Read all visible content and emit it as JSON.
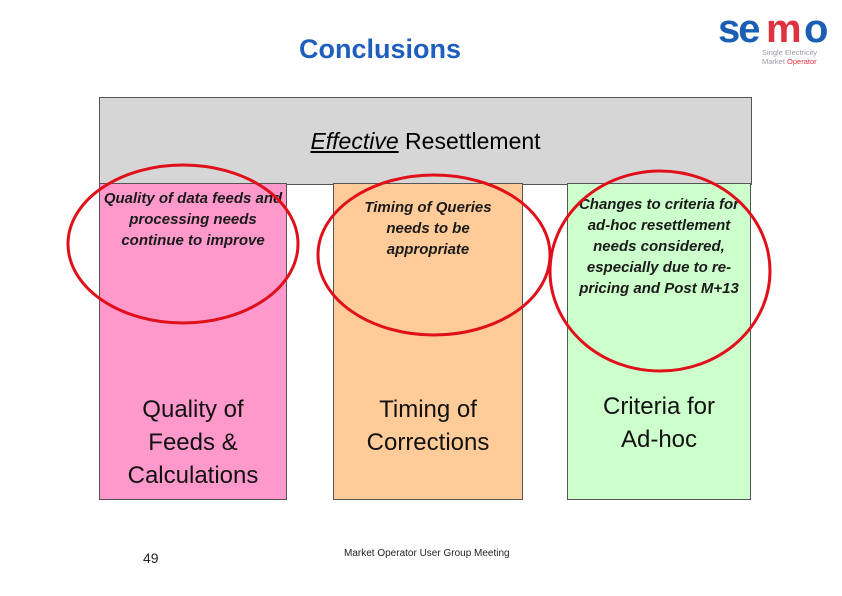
{
  "title": "Conclusions",
  "logo": {
    "wordmark": "semo",
    "tagline_line1": "Single Electricity",
    "tagline_line2_a": "Market",
    "tagline_line2_b": "Operator",
    "colors": {
      "blue": "#1a5fb4",
      "red": "#e0323e",
      "grey": "#9a9aa8"
    }
  },
  "header": {
    "emphasis": "Effective",
    "rest": " Resettlement"
  },
  "pillars": [
    {
      "note": "Quality of data feeds and processing needs continue to improve",
      "label_lines": [
        "Quality of",
        "Feeds &",
        "Calculations"
      ],
      "color": "#ff99cc"
    },
    {
      "note": "Timing of Queries needs to be appropriate",
      "label_lines": [
        "Timing of",
        "Corrections"
      ],
      "color": "#ffcc99"
    },
    {
      "note": "Changes to criteria for ad-hoc resettlement needs considered, especially due to re-pricing and Post M+13",
      "label_lines": [
        "Criteria for",
        "Ad-hoc"
      ],
      "color": "#ccffcc"
    }
  ],
  "footer": {
    "page_number": "49",
    "meeting": "Market Operator User Group Meeting"
  },
  "oval_color": "#e0101a"
}
